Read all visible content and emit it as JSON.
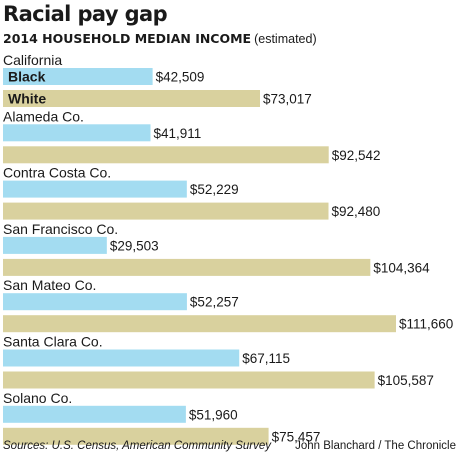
{
  "chart_data": {
    "type": "bar",
    "orientation": "horizontal",
    "title": "Racial pay gap",
    "subtitle": "2014 HOUSEHOLD MEDIAN INCOME",
    "subtitle_note": "(estimated)",
    "categories": [
      "California",
      "Alameda Co.",
      "Contra Costa Co.",
      "San Francisco Co.",
      "San Mateo Co.",
      "Santa Clara Co.",
      "Solano Co."
    ],
    "series": [
      {
        "name": "Black",
        "color": "#a3dcf1",
        "values": [
          42509,
          41911,
          52229,
          29503,
          52257,
          67115,
          51960
        ],
        "labels": [
          "$42,509",
          "$41,911",
          "$52,229",
          "$29,503",
          "$52,257",
          "$67,115",
          "$51,960"
        ]
      },
      {
        "name": "White",
        "color": "#d9d19e",
        "values": [
          73017,
          92542,
          92480,
          104364,
          111660,
          105587,
          75457
        ],
        "labels": [
          "$73,017",
          "$92,542",
          "$92,480",
          "$104,364",
          "$111,660",
          "$105,587",
          "$75,457"
        ]
      }
    ],
    "grid": false,
    "legend": "inside first bars"
  },
  "footer": {
    "source": "Sources: U.S. Census, American Community Survey",
    "credit": "John Blanchard / The Chronicle"
  }
}
